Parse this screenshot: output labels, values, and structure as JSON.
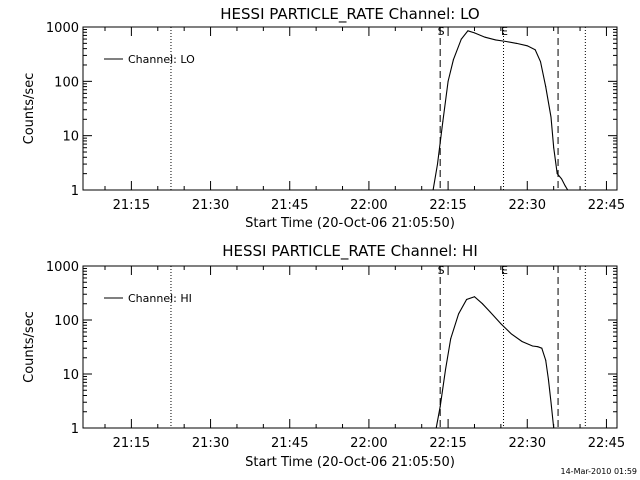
{
  "footer_date": "14-Mar-2010 01:59",
  "chart_data": [
    {
      "type": "line",
      "title": "HESSI PARTICLE_RATE Channel: LO",
      "xlabel": "Start Time (20-Oct-06 21:05:50)",
      "ylabel": "Counts/sec",
      "legend": "Channel: LO",
      "y_scale": "log",
      "ylim": [
        1,
        1000
      ],
      "xlim": [
        "21:05:50",
        "22:47:00"
      ],
      "x_ticks": [
        "21:15",
        "21:30",
        "21:45",
        "22:00",
        "22:15",
        "22:30",
        "22:45"
      ],
      "y_ticks": [
        "1",
        "10",
        "100",
        "1000"
      ],
      "markers": [
        {
          "label": "S",
          "time": "22:13:30",
          "style": "dashed"
        },
        {
          "label": "E",
          "time": "22:25:30",
          "style": "dotted"
        }
      ],
      "extra_lines": [
        {
          "time": "21:22:30",
          "style": "dotted"
        },
        {
          "time": "22:35:50",
          "style": "dashed"
        },
        {
          "time": "22:41:00",
          "style": "dotted"
        }
      ],
      "series": [
        {
          "x": [
            "22:12:10",
            "22:13:00",
            "22:14:00",
            "22:15:00",
            "22:16:00",
            "22:17:30",
            "22:18:45",
            "22:20:00",
            "22:22:00",
            "22:24:00",
            "22:26:00",
            "22:28:00",
            "22:30:00",
            "22:31:30",
            "22:32:30",
            "22:33:30",
            "22:34:30",
            "22:35:00",
            "22:35:40",
            "22:36:30",
            "22:37:10",
            "22:37:40"
          ],
          "y": [
            1,
            3,
            18,
            100,
            250,
            600,
            850,
            780,
            650,
            580,
            540,
            500,
            450,
            380,
            230,
            80,
            22,
            6,
            2,
            1.6,
            1.2,
            1
          ]
        }
      ]
    },
    {
      "type": "line",
      "title": "HESSI PARTICLE_RATE Channel: HI",
      "xlabel": "Start Time (20-Oct-06 21:05:50)",
      "ylabel": "Counts/sec",
      "legend": "Channel: HI",
      "y_scale": "log",
      "ylim": [
        1,
        1000
      ],
      "xlim": [
        "21:05:50",
        "22:47:00"
      ],
      "x_ticks": [
        "21:15",
        "21:30",
        "21:45",
        "22:00",
        "22:15",
        "22:30",
        "22:45"
      ],
      "y_ticks": [
        "1",
        "10",
        "100",
        "1000"
      ],
      "markers": [
        {
          "label": "S",
          "time": "22:13:30",
          "style": "dashed"
        },
        {
          "label": "E",
          "time": "22:25:30",
          "style": "dotted"
        }
      ],
      "extra_lines": [
        {
          "time": "21:22:30",
          "style": "dotted"
        },
        {
          "time": "22:35:50",
          "style": "dashed"
        },
        {
          "time": "22:41:00",
          "style": "dotted"
        }
      ],
      "series": [
        {
          "x": [
            "22:12:45",
            "22:13:30",
            "22:14:30",
            "22:15:30",
            "22:17:00",
            "22:18:30",
            "22:20:00",
            "22:21:30",
            "22:23:00",
            "22:25:00",
            "22:27:00",
            "22:29:00",
            "22:31:00",
            "22:32:00",
            "22:32:45",
            "22:33:30",
            "22:34:00",
            "22:34:30",
            "22:35:00"
          ],
          "y": [
            1,
            2.5,
            12,
            45,
            130,
            240,
            270,
            200,
            140,
            85,
            55,
            40,
            33,
            32,
            30,
            18,
            8,
            3,
            1
          ]
        }
      ]
    }
  ]
}
